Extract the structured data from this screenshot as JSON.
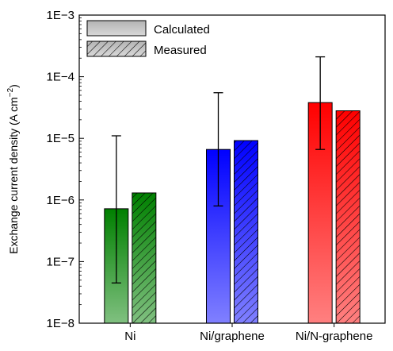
{
  "chart_data": {
    "type": "bar",
    "ylabel_main": "Exchange current density (A cm",
    "ylabel_sup": "−2",
    "ylabel_close": ")",
    "yscale": "log",
    "ylim": [
      1e-08,
      0.001
    ],
    "yticks": [
      {
        "value": 0.001,
        "label": "1E−3"
      },
      {
        "value": 0.0001,
        "label": "1E−4"
      },
      {
        "value": 1e-05,
        "label": "1E−5"
      },
      {
        "value": 1e-06,
        "label": "1E−6"
      },
      {
        "value": 1e-07,
        "label": "1E−7"
      },
      {
        "value": 1e-08,
        "label": "1E−8"
      }
    ],
    "categories": [
      "Ni",
      "Ni/graphene",
      "Ni/N-graphene"
    ],
    "category_colors": [
      "#008000",
      "#0000ff",
      "#ff0000"
    ],
    "series": [
      {
        "name": "Calculated",
        "hatched": false,
        "values": [
          7.2e-07,
          6.6e-06,
          3.8e-05
        ],
        "err_low": [
          4.5e-08,
          8e-07,
          6.6e-06
        ],
        "err_high": [
          1.1e-05,
          5.5e-05,
          0.00021
        ]
      },
      {
        "name": "Measured",
        "hatched": true,
        "values": [
          1.3e-06,
          9.2e-06,
          2.8e-05
        ]
      }
    ],
    "legend": {
      "position": "top-left",
      "items": [
        {
          "label": "Calculated",
          "hatched": false,
          "color": "#bfbfbf"
        },
        {
          "label": "Measured",
          "hatched": true,
          "color": "#bfbfbf"
        }
      ]
    },
    "grid": false
  }
}
